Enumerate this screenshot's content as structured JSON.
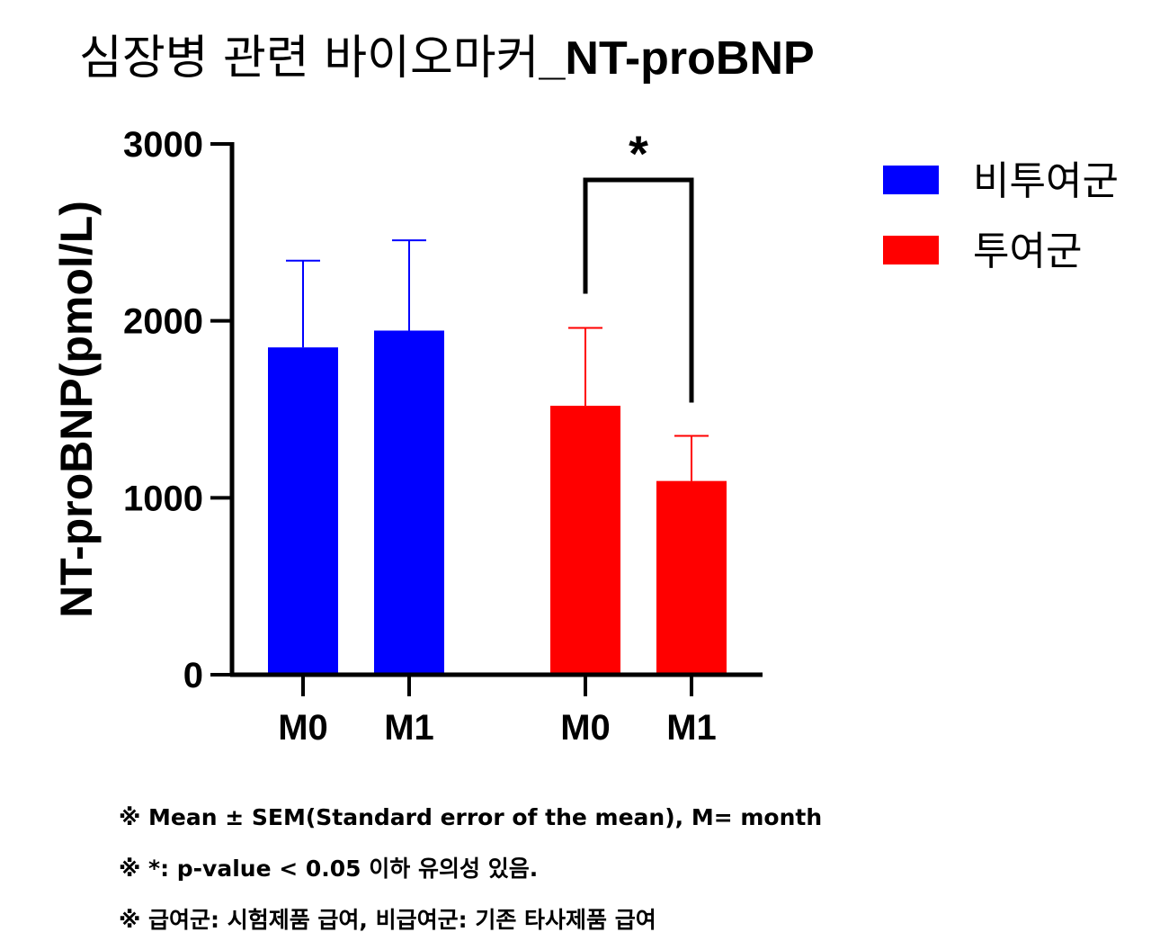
{
  "title": {
    "korean": "심장병 관련 바이오마커",
    "english": "_NT-proBNP"
  },
  "chart_data": {
    "type": "bar",
    "ylabel": "NT-proBNP(pmol/L)",
    "ylim": [
      0,
      3000
    ],
    "yticks": [
      0,
      1000,
      2000,
      3000
    ],
    "groups": [
      {
        "legend_index": 0,
        "bars": [
          {
            "label": "M0",
            "value": 1850,
            "error": 490
          },
          {
            "label": "M1",
            "value": 1945,
            "error": 510
          }
        ]
      },
      {
        "legend_index": 1,
        "bars": [
          {
            "label": "M0",
            "value": 1520,
            "error": 440
          },
          {
            "label": "M1",
            "value": 1095,
            "error": 255
          }
        ]
      }
    ],
    "legend": [
      {
        "label": "비투여군",
        "color": "#0000ff"
      },
      {
        "label": "투여군",
        "color": "#ff0000"
      }
    ],
    "annotation": {
      "text": "*",
      "between": [
        "투여군 M0",
        "투여군 M1"
      ]
    },
    "legend_position": "top-right",
    "grid": false
  },
  "footnotes": [
    "※  Mean ± SEM(Standard error of the mean), M=  month",
    "※  *: p-value  <  0.05  이하  유의성  있음.",
    "※  급여군: 시험제품  급여,  비급여군:  기존  타사제품  급여"
  ]
}
